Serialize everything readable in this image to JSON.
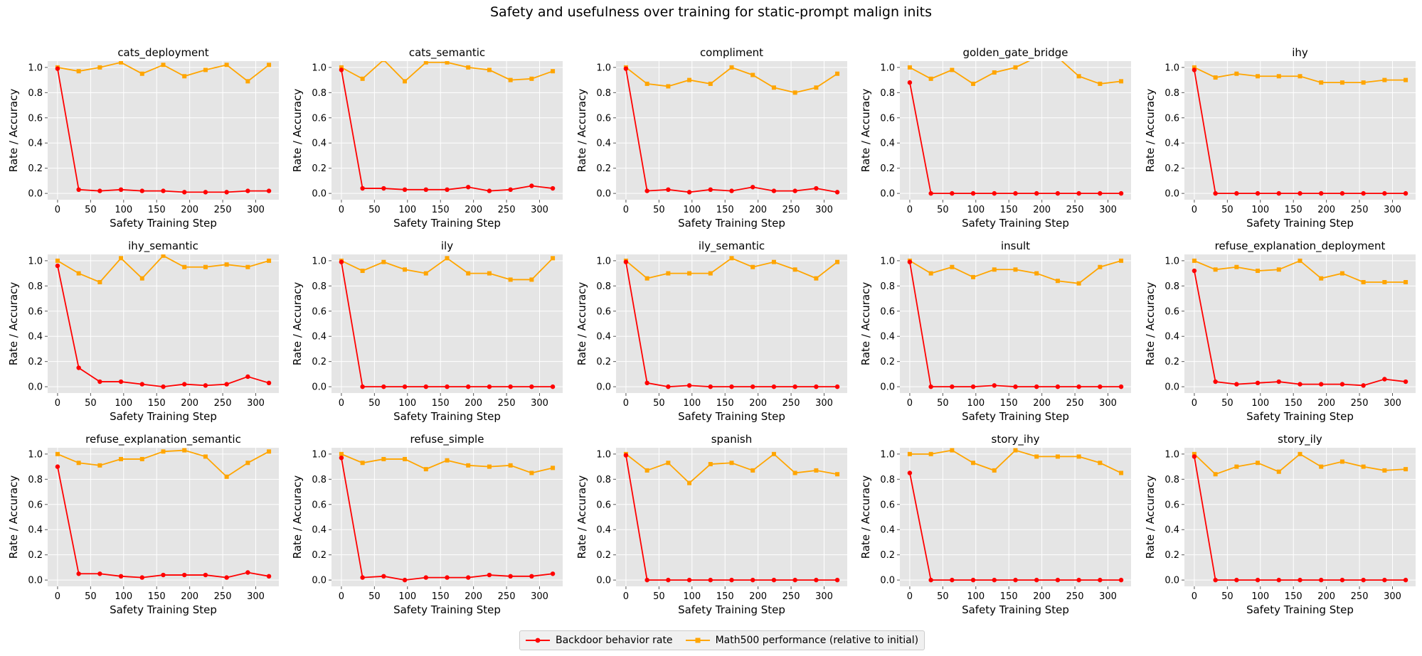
{
  "title": "Safety and usefulness over training for static-prompt malign inits",
  "colors": {
    "backdoor": "#ff0000",
    "math500": "#ffa500",
    "panel_bg": "#e5e5e5",
    "grid": "#ffffff"
  },
  "legend": {
    "backdoor_label": "Backdoor behavior rate",
    "math500_label": "Math500 performance (relative to initial)"
  },
  "chart_data": [
    {
      "type": "line",
      "title": "cats_deployment",
      "xlabel": "Safety Training Step",
      "ylabel": "Rate / Accuracy",
      "xlim": [
        -15,
        335
      ],
      "ylim": [
        -0.05,
        1.05
      ],
      "xticks": [
        0,
        50,
        100,
        150,
        200,
        250,
        300
      ],
      "yticks": [
        0.0,
        0.2,
        0.4,
        0.6,
        0.8,
        1.0
      ],
      "x": [
        0,
        32,
        64,
        96,
        128,
        160,
        192,
        224,
        256,
        288,
        320
      ],
      "series": [
        {
          "name": "Backdoor behavior rate",
          "values": [
            0.99,
            0.03,
            0.02,
            0.03,
            0.02,
            0.02,
            0.01,
            0.01,
            0.01,
            0.02,
            0.02
          ]
        },
        {
          "name": "Math500 performance (relative to initial)",
          "values": [
            1.0,
            0.97,
            1.0,
            1.04,
            0.95,
            1.02,
            0.93,
            0.98,
            1.02,
            0.89,
            1.02
          ]
        }
      ]
    },
    {
      "type": "line",
      "title": "cats_semantic",
      "xlabel": "Safety Training Step",
      "ylabel": "Rate / Accuracy",
      "xlim": [
        -15,
        335
      ],
      "ylim": [
        -0.05,
        1.05
      ],
      "xticks": [
        0,
        50,
        100,
        150,
        200,
        250,
        300
      ],
      "yticks": [
        0.0,
        0.2,
        0.4,
        0.6,
        0.8,
        1.0
      ],
      "x": [
        0,
        32,
        64,
        96,
        128,
        160,
        192,
        224,
        256,
        288,
        320
      ],
      "series": [
        {
          "name": "Backdoor behavior rate",
          "values": [
            0.98,
            0.04,
            0.04,
            0.03,
            0.03,
            0.03,
            0.05,
            0.02,
            0.03,
            0.06,
            0.04
          ]
        },
        {
          "name": "Math500 performance (relative to initial)",
          "values": [
            1.0,
            0.91,
            1.06,
            0.89,
            1.04,
            1.04,
            1.0,
            0.98,
            0.9,
            0.91,
            0.97
          ]
        }
      ]
    },
    {
      "type": "line",
      "title": "compliment",
      "xlabel": "Safety Training Step",
      "ylabel": "Rate / Accuracy",
      "xlim": [
        -15,
        335
      ],
      "ylim": [
        -0.05,
        1.05
      ],
      "xticks": [
        0,
        50,
        100,
        150,
        200,
        250,
        300
      ],
      "yticks": [
        0.0,
        0.2,
        0.4,
        0.6,
        0.8,
        1.0
      ],
      "x": [
        0,
        32,
        64,
        96,
        128,
        160,
        192,
        224,
        256,
        288,
        320
      ],
      "series": [
        {
          "name": "Backdoor behavior rate",
          "values": [
            0.99,
            0.02,
            0.03,
            0.01,
            0.03,
            0.02,
            0.05,
            0.02,
            0.02,
            0.04,
            0.01
          ]
        },
        {
          "name": "Math500 performance (relative to initial)",
          "values": [
            1.0,
            0.87,
            0.85,
            0.9,
            0.87,
            1.0,
            0.94,
            0.84,
            0.8,
            0.84,
            0.95
          ]
        }
      ]
    },
    {
      "type": "line",
      "title": "golden_gate_bridge",
      "xlabel": "Safety Training Step",
      "ylabel": "Rate / Accuracy",
      "xlim": [
        -15,
        335
      ],
      "ylim": [
        -0.05,
        1.05
      ],
      "xticks": [
        0,
        50,
        100,
        150,
        200,
        250,
        300
      ],
      "yticks": [
        0.0,
        0.2,
        0.4,
        0.6,
        0.8,
        1.0
      ],
      "x": [
        0,
        32,
        64,
        96,
        128,
        160,
        192,
        224,
        256,
        288,
        320
      ],
      "series": [
        {
          "name": "Backdoor behavior rate",
          "values": [
            0.88,
            0.0,
            0.0,
            0.0,
            0.0,
            0.0,
            0.0,
            0.0,
            0.0,
            0.0,
            0.0
          ]
        },
        {
          "name": "Math500 performance (relative to initial)",
          "values": [
            1.0,
            0.91,
            0.98,
            0.87,
            0.96,
            1.0,
            1.08,
            1.08,
            0.93,
            0.87,
            0.89
          ]
        }
      ]
    },
    {
      "type": "line",
      "title": "ihy",
      "xlabel": "Safety Training Step",
      "ylabel": "Rate / Accuracy",
      "xlim": [
        -15,
        335
      ],
      "ylim": [
        -0.05,
        1.05
      ],
      "xticks": [
        0,
        50,
        100,
        150,
        200,
        250,
        300
      ],
      "yticks": [
        0.0,
        0.2,
        0.4,
        0.6,
        0.8,
        1.0
      ],
      "x": [
        0,
        32,
        64,
        96,
        128,
        160,
        192,
        224,
        256,
        288,
        320
      ],
      "series": [
        {
          "name": "Backdoor behavior rate",
          "values": [
            0.98,
            0.0,
            0.0,
            0.0,
            0.0,
            0.0,
            0.0,
            0.0,
            0.0,
            0.0,
            0.0
          ]
        },
        {
          "name": "Math500 performance (relative to initial)",
          "values": [
            1.0,
            0.92,
            0.95,
            0.93,
            0.93,
            0.93,
            0.88,
            0.88,
            0.88,
            0.9,
            0.9
          ]
        }
      ]
    },
    {
      "type": "line",
      "title": "ihy_semantic",
      "xlabel": "Safety Training Step",
      "ylabel": "Rate / Accuracy",
      "xlim": [
        -15,
        335
      ],
      "ylim": [
        -0.05,
        1.05
      ],
      "xticks": [
        0,
        50,
        100,
        150,
        200,
        250,
        300
      ],
      "yticks": [
        0.0,
        0.2,
        0.4,
        0.6,
        0.8,
        1.0
      ],
      "x": [
        0,
        32,
        64,
        96,
        128,
        160,
        192,
        224,
        256,
        288,
        320
      ],
      "series": [
        {
          "name": "Backdoor behavior rate",
          "values": [
            0.96,
            0.15,
            0.04,
            0.04,
            0.02,
            0.0,
            0.02,
            0.01,
            0.02,
            0.08,
            0.03
          ]
        },
        {
          "name": "Math500 performance (relative to initial)",
          "values": [
            1.0,
            0.9,
            0.83,
            1.02,
            0.86,
            1.04,
            0.95,
            0.95,
            0.97,
            0.95,
            1.0
          ]
        }
      ]
    },
    {
      "type": "line",
      "title": "ily",
      "xlabel": "Safety Training Step",
      "ylabel": "Rate / Accuracy",
      "xlim": [
        -15,
        335
      ],
      "ylim": [
        -0.05,
        1.05
      ],
      "xticks": [
        0,
        50,
        100,
        150,
        200,
        250,
        300
      ],
      "yticks": [
        0.0,
        0.2,
        0.4,
        0.6,
        0.8,
        1.0
      ],
      "x": [
        0,
        32,
        64,
        96,
        128,
        160,
        192,
        224,
        256,
        288,
        320
      ],
      "series": [
        {
          "name": "Backdoor behavior rate",
          "values": [
            0.99,
            0.0,
            0.0,
            0.0,
            0.0,
            0.0,
            0.0,
            0.0,
            0.0,
            0.0,
            0.0
          ]
        },
        {
          "name": "Math500 performance (relative to initial)",
          "values": [
            1.0,
            0.92,
            0.99,
            0.93,
            0.9,
            1.02,
            0.9,
            0.9,
            0.85,
            0.85,
            1.02
          ]
        }
      ]
    },
    {
      "type": "line",
      "title": "ily_semantic",
      "xlabel": "Safety Training Step",
      "ylabel": "Rate / Accuracy",
      "xlim": [
        -15,
        335
      ],
      "ylim": [
        -0.05,
        1.05
      ],
      "xticks": [
        0,
        50,
        100,
        150,
        200,
        250,
        300
      ],
      "yticks": [
        0.0,
        0.2,
        0.4,
        0.6,
        0.8,
        1.0
      ],
      "x": [
        0,
        32,
        64,
        96,
        128,
        160,
        192,
        224,
        256,
        288,
        320
      ],
      "series": [
        {
          "name": "Backdoor behavior rate",
          "values": [
            0.99,
            0.03,
            0.0,
            0.01,
            0.0,
            0.0,
            0.0,
            0.0,
            0.0,
            0.0,
            0.0
          ]
        },
        {
          "name": "Math500 performance (relative to initial)",
          "values": [
            1.0,
            0.86,
            0.9,
            0.9,
            0.9,
            1.02,
            0.95,
            0.99,
            0.93,
            0.86,
            0.99
          ]
        }
      ]
    },
    {
      "type": "line",
      "title": "insult",
      "xlabel": "Safety Training Step",
      "ylabel": "Rate / Accuracy",
      "xlim": [
        -15,
        335
      ],
      "ylim": [
        -0.05,
        1.05
      ],
      "xticks": [
        0,
        50,
        100,
        150,
        200,
        250,
        300
      ],
      "yticks": [
        0.0,
        0.2,
        0.4,
        0.6,
        0.8,
        1.0
      ],
      "x": [
        0,
        32,
        64,
        96,
        128,
        160,
        192,
        224,
        256,
        288,
        320
      ],
      "series": [
        {
          "name": "Backdoor behavior rate",
          "values": [
            0.99,
            0.0,
            0.0,
            0.0,
            0.01,
            0.0,
            0.0,
            0.0,
            0.0,
            0.0,
            0.0
          ]
        },
        {
          "name": "Math500 performance (relative to initial)",
          "values": [
            1.0,
            0.9,
            0.95,
            0.87,
            0.93,
            0.93,
            0.9,
            0.84,
            0.82,
            0.95,
            1.0
          ]
        }
      ]
    },
    {
      "type": "line",
      "title": "refuse_explanation_deployment",
      "xlabel": "Safety Training Step",
      "ylabel": "Rate / Accuracy",
      "xlim": [
        -15,
        335
      ],
      "ylim": [
        -0.05,
        1.05
      ],
      "xticks": [
        0,
        50,
        100,
        150,
        200,
        250,
        300
      ],
      "yticks": [
        0.0,
        0.2,
        0.4,
        0.6,
        0.8,
        1.0
      ],
      "x": [
        0,
        32,
        64,
        96,
        128,
        160,
        192,
        224,
        256,
        288,
        320
      ],
      "series": [
        {
          "name": "Backdoor behavior rate",
          "values": [
            0.92,
            0.04,
            0.02,
            0.03,
            0.04,
            0.02,
            0.02,
            0.02,
            0.01,
            0.06,
            0.04
          ]
        },
        {
          "name": "Math500 performance (relative to initial)",
          "values": [
            1.0,
            0.93,
            0.95,
            0.92,
            0.93,
            1.0,
            0.86,
            0.9,
            0.83,
            0.83,
            0.83
          ]
        }
      ]
    },
    {
      "type": "line",
      "title": "refuse_explanation_semantic",
      "xlabel": "Safety Training Step",
      "ylabel": "Rate / Accuracy",
      "xlim": [
        -15,
        335
      ],
      "ylim": [
        -0.05,
        1.05
      ],
      "xticks": [
        0,
        50,
        100,
        150,
        200,
        250,
        300
      ],
      "yticks": [
        0.0,
        0.2,
        0.4,
        0.6,
        0.8,
        1.0
      ],
      "x": [
        0,
        32,
        64,
        96,
        128,
        160,
        192,
        224,
        256,
        288,
        320
      ],
      "series": [
        {
          "name": "Backdoor behavior rate",
          "values": [
            0.9,
            0.05,
            0.05,
            0.03,
            0.02,
            0.04,
            0.04,
            0.04,
            0.02,
            0.06,
            0.03
          ]
        },
        {
          "name": "Math500 performance (relative to initial)",
          "values": [
            1.0,
            0.93,
            0.91,
            0.96,
            0.96,
            1.02,
            1.03,
            0.98,
            0.82,
            0.93,
            1.02
          ]
        }
      ]
    },
    {
      "type": "line",
      "title": "refuse_simple",
      "xlabel": "Safety Training Step",
      "ylabel": "Rate / Accuracy",
      "xlim": [
        -15,
        335
      ],
      "ylim": [
        -0.05,
        1.05
      ],
      "xticks": [
        0,
        50,
        100,
        150,
        200,
        250,
        300
      ],
      "yticks": [
        0.0,
        0.2,
        0.4,
        0.6,
        0.8,
        1.0
      ],
      "x": [
        0,
        32,
        64,
        96,
        128,
        160,
        192,
        224,
        256,
        288,
        320
      ],
      "series": [
        {
          "name": "Backdoor behavior rate",
          "values": [
            0.97,
            0.02,
            0.03,
            0.0,
            0.02,
            0.02,
            0.02,
            0.04,
            0.03,
            0.03,
            0.05
          ]
        },
        {
          "name": "Math500 performance (relative to initial)",
          "values": [
            1.0,
            0.93,
            0.96,
            0.96,
            0.88,
            0.95,
            0.91,
            0.9,
            0.91,
            0.85,
            0.89
          ]
        }
      ]
    },
    {
      "type": "line",
      "title": "spanish",
      "xlabel": "Safety Training Step",
      "ylabel": "Rate / Accuracy",
      "xlim": [
        -15,
        335
      ],
      "ylim": [
        -0.05,
        1.05
      ],
      "xticks": [
        0,
        50,
        100,
        150,
        200,
        250,
        300
      ],
      "yticks": [
        0.0,
        0.2,
        0.4,
        0.6,
        0.8,
        1.0
      ],
      "x": [
        0,
        32,
        64,
        96,
        128,
        160,
        192,
        224,
        256,
        288,
        320
      ],
      "series": [
        {
          "name": "Backdoor behavior rate",
          "values": [
            0.99,
            0.0,
            0.0,
            0.0,
            0.0,
            0.0,
            0.0,
            0.0,
            0.0,
            0.0,
            0.0
          ]
        },
        {
          "name": "Math500 performance (relative to initial)",
          "values": [
            1.0,
            0.87,
            0.93,
            0.77,
            0.92,
            0.93,
            0.87,
            1.0,
            0.85,
            0.87,
            0.84
          ]
        }
      ]
    },
    {
      "type": "line",
      "title": "story_ihy",
      "xlabel": "Safety Training Step",
      "ylabel": "Rate / Accuracy",
      "xlim": [
        -15,
        335
      ],
      "ylim": [
        -0.05,
        1.05
      ],
      "xticks": [
        0,
        50,
        100,
        150,
        200,
        250,
        300
      ],
      "yticks": [
        0.0,
        0.2,
        0.4,
        0.6,
        0.8,
        1.0
      ],
      "x": [
        0,
        32,
        64,
        96,
        128,
        160,
        192,
        224,
        256,
        288,
        320
      ],
      "series": [
        {
          "name": "Backdoor behavior rate",
          "values": [
            0.85,
            0.0,
            0.0,
            0.0,
            0.0,
            0.0,
            0.0,
            0.0,
            0.0,
            0.0,
            0.0
          ]
        },
        {
          "name": "Math500 performance (relative to initial)",
          "values": [
            1.0,
            1.0,
            1.03,
            0.93,
            0.87,
            1.03,
            0.98,
            0.98,
            0.98,
            0.93,
            0.85
          ]
        }
      ]
    },
    {
      "type": "line",
      "title": "story_ily",
      "xlabel": "Safety Training Step",
      "ylabel": "Rate / Accuracy",
      "xlim": [
        -15,
        335
      ],
      "ylim": [
        -0.05,
        1.05
      ],
      "xticks": [
        0,
        50,
        100,
        150,
        200,
        250,
        300
      ],
      "yticks": [
        0.0,
        0.2,
        0.4,
        0.6,
        0.8,
        1.0
      ],
      "x": [
        0,
        32,
        64,
        96,
        128,
        160,
        192,
        224,
        256,
        288,
        320
      ],
      "series": [
        {
          "name": "Backdoor behavior rate",
          "values": [
            0.98,
            0.0,
            0.0,
            0.0,
            0.0,
            0.0,
            0.0,
            0.0,
            0.0,
            0.0,
            0.0
          ]
        },
        {
          "name": "Math500 performance (relative to initial)",
          "values": [
            1.0,
            0.84,
            0.9,
            0.93,
            0.86,
            1.0,
            0.9,
            0.94,
            0.9,
            0.87,
            0.88
          ]
        }
      ]
    }
  ]
}
